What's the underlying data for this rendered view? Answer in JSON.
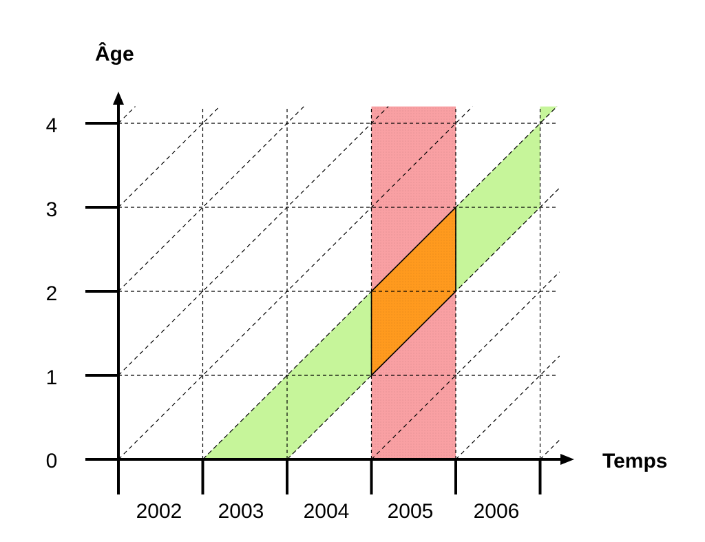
{
  "chart_data": {
    "type": "lexis-diagram",
    "ylabel": "Âge",
    "xlabel": "Temps",
    "y_ticks": [
      "0",
      "1",
      "2",
      "3",
      "4"
    ],
    "x_ticks": [
      "2002",
      "2003",
      "2004",
      "2005",
      "2006"
    ],
    "x_start_year": 2002,
    "x_end_year": 2007,
    "y_range": [
      0,
      4.2
    ],
    "grid": "dashed",
    "lifelines": "dashed diagonals of slope one year of age per calendar year",
    "regions": [
      {
        "name": "period",
        "color": "#f9a0a3",
        "description": "all ages observed during calendar year 2005",
        "year": 2005
      },
      {
        "name": "cohort",
        "color": "#c6f59a",
        "description": "generation born during 2003",
        "birth_year": 2003
      },
      {
        "name": "overlap",
        "color": "#ff9a1e",
        "description": "cohort born in 2003 observed during 2005",
        "year": 2005,
        "birth_year": 2003
      }
    ]
  }
}
